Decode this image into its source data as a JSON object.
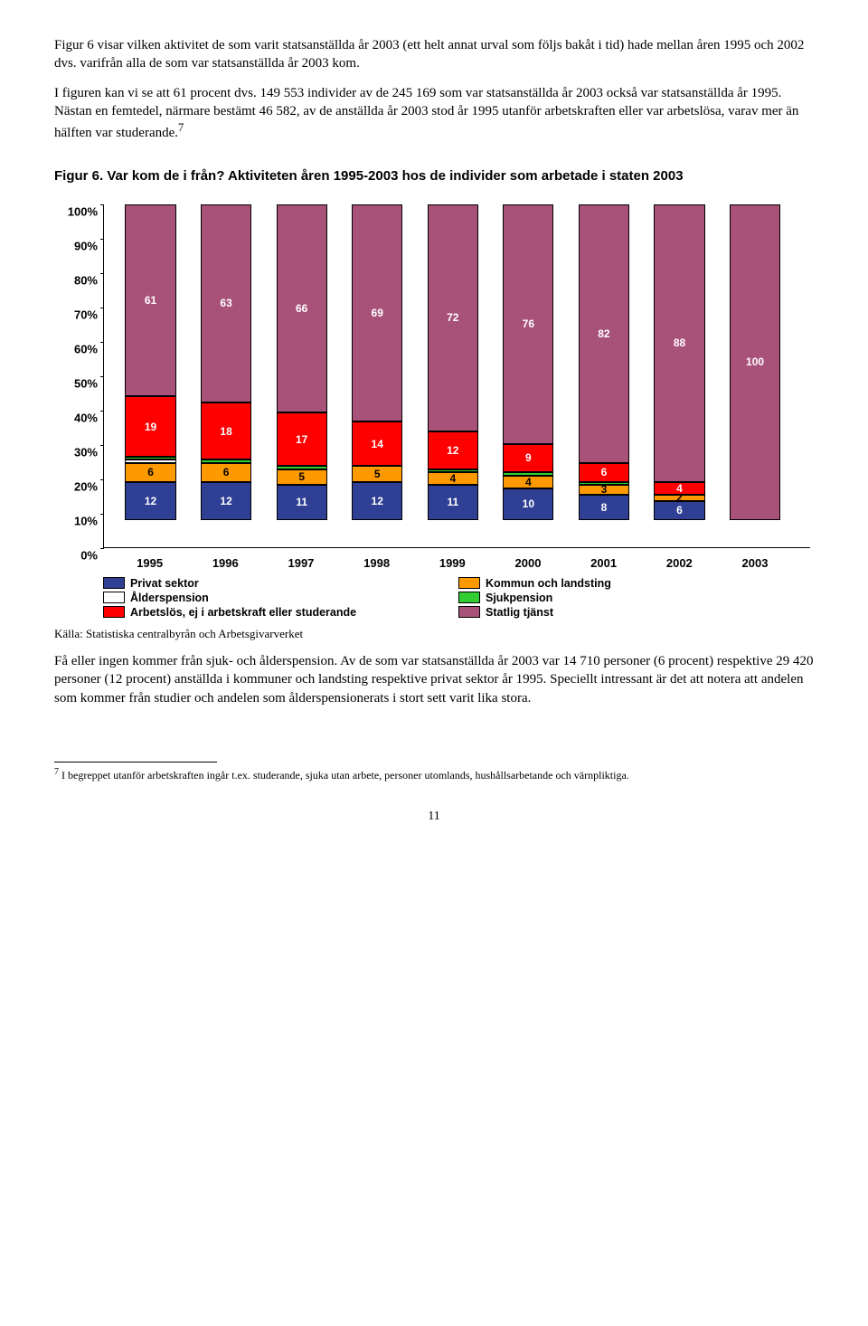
{
  "para1": "Figur 6 visar vilken aktivitet de som varit statsanställda år 2003 (ett helt annat urval som följs bakåt i tid) hade mellan åren 1995 och 2002 dvs. varifrån alla de som var statsanställda år 2003 kom.",
  "para2": "I figuren kan vi se att 61 procent dvs. 149 553 individer av de 245 169 som var statsanställda år 2003 också var statsanställda år 1995. Nästan en femtedel, närmare bestämt 46 582, av de anställda år 2003 stod år 1995 utanför arbetskraften eller var arbetslösa, varav mer än hälften var studerande.",
  "sup1": "7",
  "chart_title": "Figur 6. Var kom de i från? Aktiviteten åren 1995-2003 hos de individer som arbetade i staten 2003",
  "chart": {
    "type": "stacked-bar",
    "ylim": [
      0,
      100
    ],
    "ytick_step": 10,
    "yticks": [
      "0%",
      "10%",
      "20%",
      "30%",
      "40%",
      "50%",
      "60%",
      "70%",
      "80%",
      "90%",
      "100%"
    ],
    "categories": [
      "1995",
      "1996",
      "1997",
      "1998",
      "1999",
      "2000",
      "2001",
      "2002",
      "2003"
    ],
    "series": [
      {
        "key": "privat",
        "label": "Privat sektor",
        "color": "#2f3f93"
      },
      {
        "key": "kommun",
        "label": "Kommun och landsting",
        "color": "#ff9900"
      },
      {
        "key": "alder",
        "label": "Ålderspension",
        "color": "#ffffff"
      },
      {
        "key": "sjuk",
        "label": "Sjukpension",
        "color": "#33cc33"
      },
      {
        "key": "arbetslos",
        "label": "Arbetslös, ej i arbetskraft eller studerande",
        "color": "#ff0000"
      },
      {
        "key": "statlig",
        "label": "Statlig tjänst",
        "color": "#a8527a"
      }
    ],
    "data": [
      {
        "privat": 12,
        "kommun": 6,
        "alder": 1,
        "sjuk": 1,
        "arbetslos": 19,
        "statlig": 61
      },
      {
        "privat": 12,
        "kommun": 6,
        "alder": 0,
        "sjuk": 1,
        "arbetslos": 18,
        "statlig": 63
      },
      {
        "privat": 11,
        "kommun": 5,
        "alder": 0,
        "sjuk": 1,
        "arbetslos": 17,
        "statlig": 66
      },
      {
        "privat": 12,
        "kommun": 5,
        "alder": 0,
        "sjuk": 0,
        "arbetslos": 14,
        "statlig": 69
      },
      {
        "privat": 11,
        "kommun": 4,
        "alder": 0,
        "sjuk": 1,
        "arbetslos": 12,
        "statlig": 72
      },
      {
        "privat": 10,
        "kommun": 4,
        "alder": 0,
        "sjuk": 1,
        "arbetslos": 9,
        "statlig": 76
      },
      {
        "privat": 8,
        "kommun": 3,
        "alder": 0,
        "sjuk": 1,
        "arbetslos": 6,
        "statlig": 82
      },
      {
        "privat": 6,
        "kommun": 2,
        "alder": 0,
        "sjuk": 0,
        "arbetslos": 4,
        "statlig": 88
      },
      {
        "privat": 0,
        "kommun": 0,
        "alder": 0,
        "sjuk": 0,
        "arbetslos": 0,
        "statlig": 100
      }
    ],
    "labels": [
      {
        "privat": "12",
        "kommun": "6",
        "arbetslos": "19",
        "statlig": "61"
      },
      {
        "privat": "12",
        "kommun": "6",
        "arbetslos": "18",
        "statlig": "63"
      },
      {
        "privat": "11",
        "kommun": "5",
        "arbetslos": "17",
        "statlig": "66"
      },
      {
        "privat": "12",
        "kommun": "5",
        "arbetslos": "14",
        "statlig": "69"
      },
      {
        "privat": "11",
        "kommun": "4",
        "arbetslos": "12",
        "statlig": "72"
      },
      {
        "privat": "10",
        "kommun": "4",
        "arbetslos": "9",
        "statlig": "76"
      },
      {
        "privat": "8",
        "kommun": "3",
        "arbetslos": "6",
        "statlig": "82"
      },
      {
        "privat": "6",
        "kommun": "2",
        "arbetslos": "4",
        "statlig": "88"
      },
      {
        "statlig": "100"
      }
    ],
    "label_color_light": "#ffffff",
    "label_color_dark": "#000000",
    "bar_width_pct": 7.2,
    "bar_gap_pct": 3.5,
    "bar_left_start_pct": 3.0
  },
  "source": "Källa: Statistiska centralbyrån och Arbetsgivarverket",
  "para3": "Få eller ingen kommer från sjuk- och ålderspension. Av de som var statsanställda år 2003 var 14 710 personer (6 procent) respektive 29 420 personer (12 procent) anställda i kommuner och landsting respektive privat sektor år 1995. Speciellt intressant är det att notera att andelen som kommer från studier och andelen som ålderspensionerats i stort sett varit lika stora.",
  "footnote": "I begreppet utanför arbetskraften ingår t.ex. studerande, sjuka utan arbete, personer utomlands, hushållsarbetande och värnpliktiga.",
  "footnote_num": "7",
  "page_number": "11"
}
